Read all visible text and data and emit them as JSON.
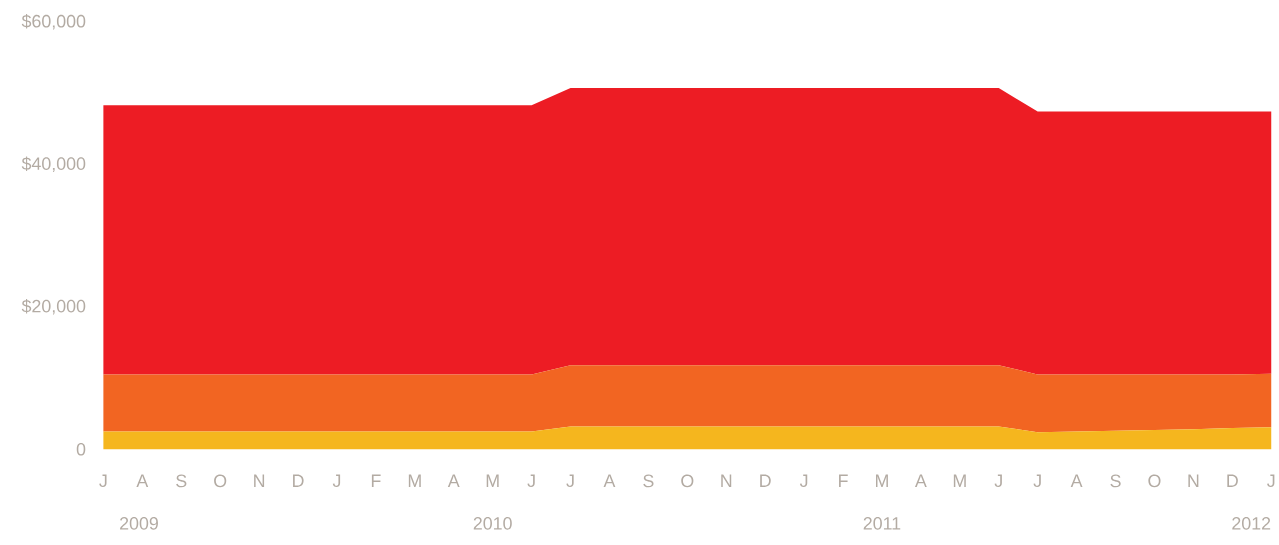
{
  "chart_data": {
    "type": "area",
    "stacked": true,
    "categories": [
      "J",
      "A",
      "S",
      "O",
      "N",
      "D",
      "J",
      "F",
      "M",
      "A",
      "M",
      "J",
      "J",
      "A",
      "S",
      "O",
      "N",
      "D",
      "J",
      "F",
      "M",
      "A",
      "M",
      "J",
      "J",
      "A",
      "S",
      "O",
      "N",
      "D",
      "J"
    ],
    "series": [
      {
        "color": "#f5b61e",
        "values": [
          2500,
          2500,
          2500,
          2500,
          2500,
          2500,
          2500,
          2500,
          2500,
          2500,
          2500,
          2500,
          3200,
          3200,
          3200,
          3200,
          3200,
          3200,
          3200,
          3200,
          3200,
          3200,
          3200,
          3200,
          2400,
          2500,
          2600,
          2700,
          2800,
          3000,
          3100
        ]
      },
      {
        "color": "#f26522",
        "values": [
          8000,
          8000,
          8000,
          8000,
          8000,
          8000,
          8000,
          8000,
          8000,
          8000,
          8000,
          8000,
          8600,
          8600,
          8600,
          8600,
          8600,
          8600,
          8600,
          8600,
          8600,
          8600,
          8600,
          8600,
          8100,
          8000,
          7900,
          7800,
          7700,
          7500,
          7500
        ]
      },
      {
        "color": "#ed1c24",
        "values": [
          37800,
          37800,
          37800,
          37800,
          37800,
          37800,
          37800,
          37800,
          37800,
          37800,
          37800,
          37800,
          38900,
          38900,
          38900,
          38900,
          38900,
          38900,
          38900,
          38900,
          38900,
          38900,
          38900,
          38900,
          36900,
          36900,
          36900,
          36900,
          36900,
          36900,
          36800
        ]
      }
    ],
    "ylim": [
      0,
      60000
    ],
    "yticks": [
      0,
      {
        "value": 20000,
        "label": "$20,000"
      },
      {
        "value": 40000,
        "label": "$40,000"
      },
      {
        "value": 60000,
        "label": "$60,000"
      }
    ],
    "annotations": [
      "2009",
      "2010",
      "2011",
      "2012"
    ]
  }
}
